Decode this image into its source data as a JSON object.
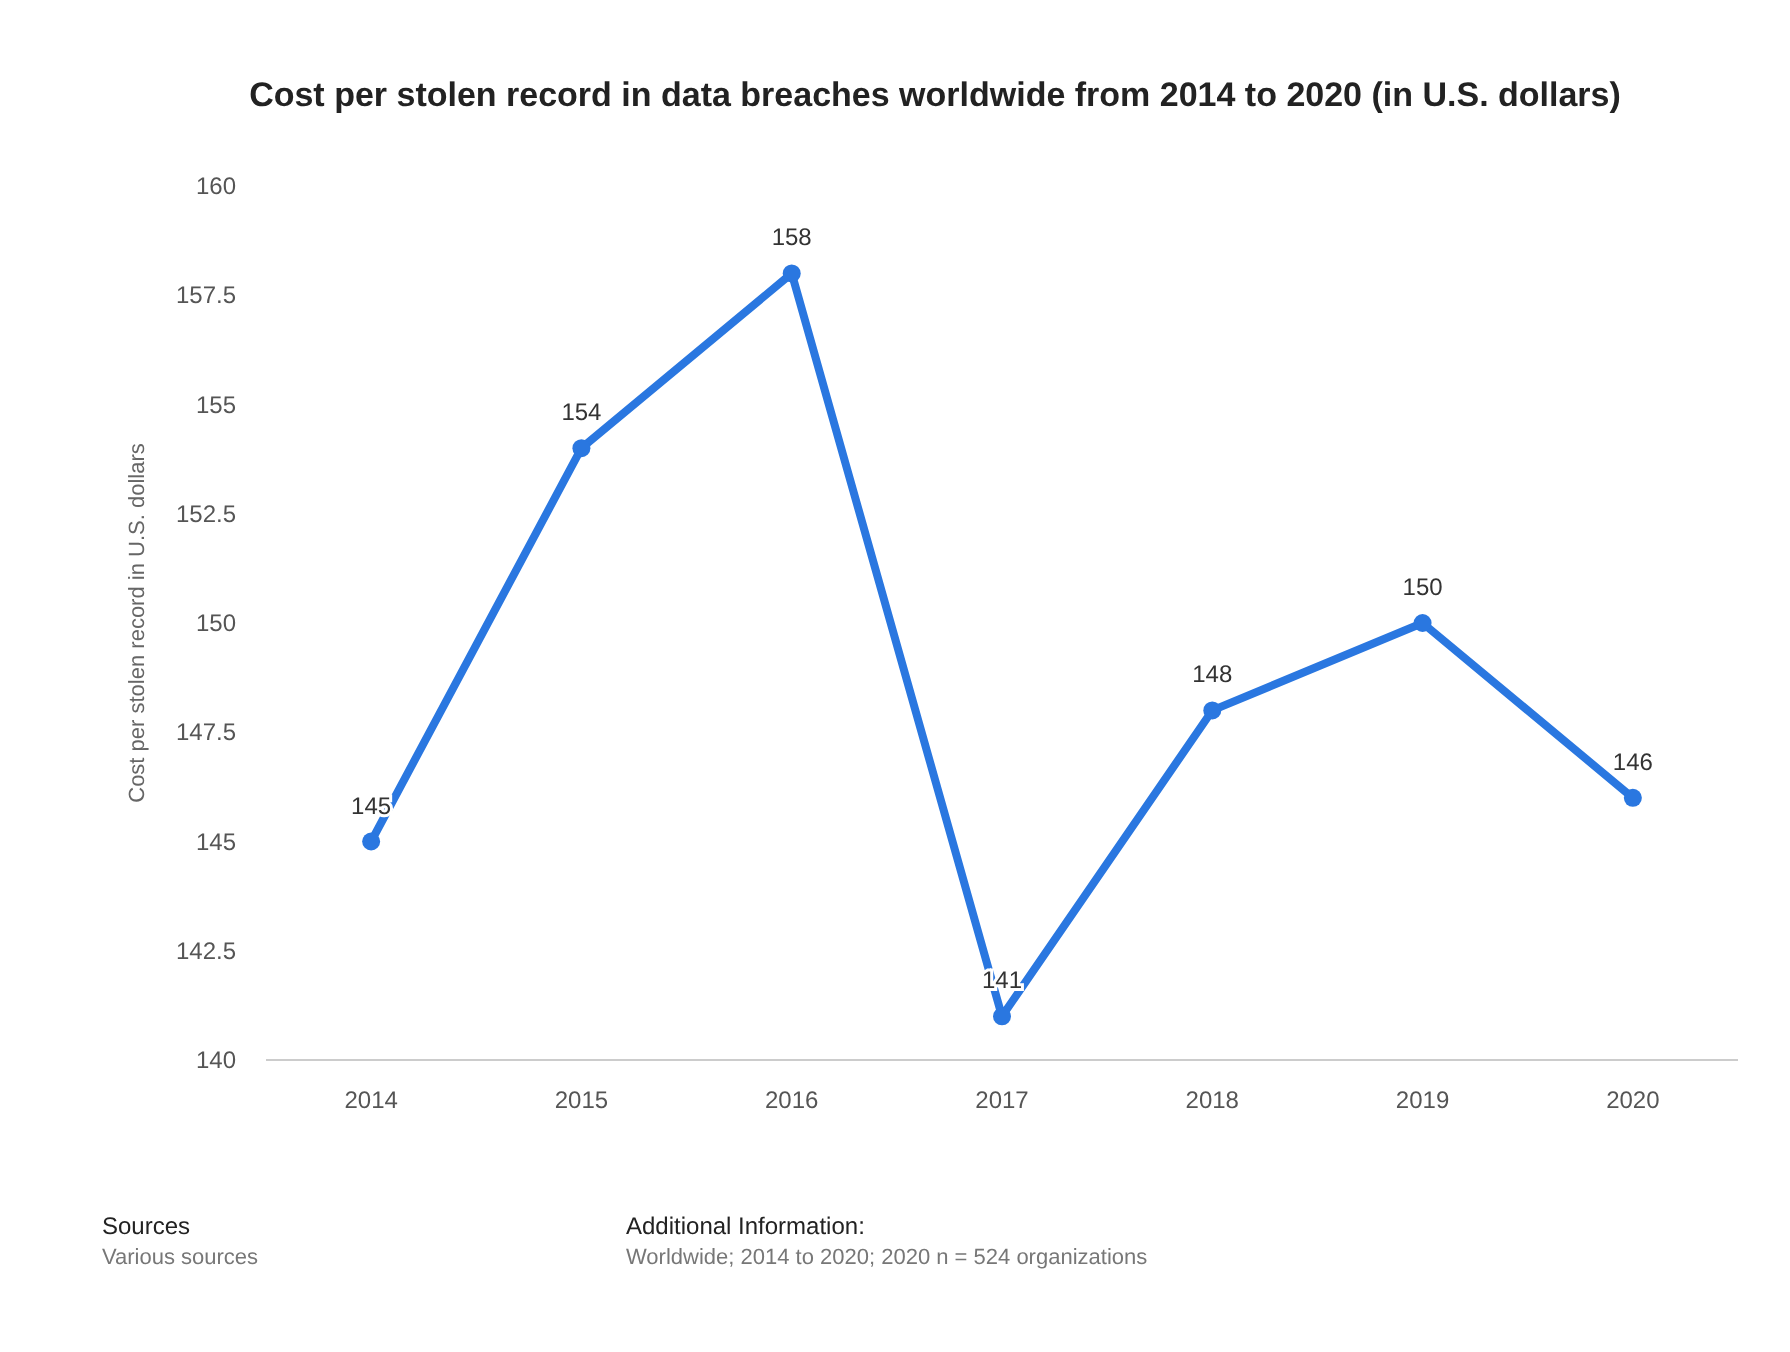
{
  "chart_data": {
    "type": "line",
    "title": "Cost per stolen record in data breaches worldwide from 2014 to 2020 (in U.S. dollars)",
    "ylabel": "Cost per stolen record in U.S. dollars",
    "categories": [
      "2014",
      "2015",
      "2016",
      "2017",
      "2018",
      "2019",
      "2020"
    ],
    "series": [
      {
        "color": "#2a77e0",
        "values": [
          145,
          154,
          158,
          141,
          148,
          150,
          146
        ]
      }
    ],
    "ylim": [
      140,
      160
    ],
    "yticks": [
      140,
      142.5,
      145,
      147.5,
      150,
      152.5,
      155,
      157.5,
      160
    ],
    "data_labels": true,
    "marker": "circle",
    "line_style": "solid",
    "grid": false,
    "annotations": [
      "Sources",
      "Various sources",
      "Additional Information:",
      "Worldwide; 2014 to 2020; 2020 n = 524 organizations"
    ]
  }
}
